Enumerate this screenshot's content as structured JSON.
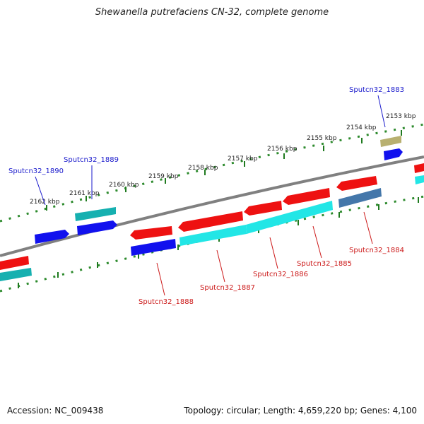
{
  "title": "Shewanella putrefaciens CN-32, complete genome",
  "footer": {
    "accession": "Accession: NC_009438",
    "topology": "Topology: circular; Length: 4,659,220 bp; Genes: 4,100"
  },
  "colors": {
    "backbone": "#808080",
    "ruler_dot": "#2e8b2e",
    "ruler_tick": "#1f7a1f",
    "forward_gene_label": "#1a1acc",
    "reverse_gene_label": "#cc1a1a",
    "red_gene": "#ee1111",
    "blue_gene": "#1111ee",
    "teal_cds": "#16b0b0",
    "cyan_cds": "#22e6e6",
    "steel_cds": "#4477aa",
    "khaki_gene": "#b8b070"
  },
  "ruler_labels": [
    "2162 kbp",
    "2161 kbp",
    "2160 kbp",
    "2159 kbp",
    "2158 kbp",
    "2157 kbp",
    "2156 kbp",
    "2155 kbp",
    "2154 kbp",
    "2153 kbp"
  ],
  "gene_labels": {
    "top": [
      "Sputcn32_1890",
      "Sputcn32_1889",
      "Sputcn32_1883"
    ],
    "bottom": [
      "Sputcn32_1888",
      "Sputcn32_1887",
      "Sputcn32_1886",
      "Sputcn32_1885",
      "Sputcn32_1884"
    ]
  }
}
